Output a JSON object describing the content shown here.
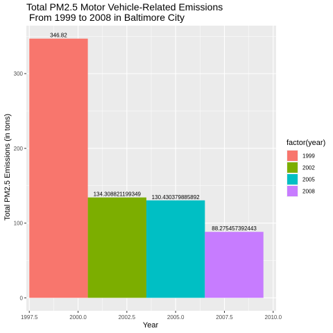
{
  "chart_data": {
    "type": "bar",
    "title_line1": "Total PM2.5 Motor Vehicle-Related Emissions",
    "title_line2": " From 1999 to 2008 in Baltimore City",
    "xlabel": "Year",
    "ylabel": "Total PM2.5 Emissions (in tons)",
    "x": [
      1999,
      2002,
      2005,
      2008
    ],
    "values": [
      346.82,
      134.308821199349,
      130.430379885892,
      88.275457392443
    ],
    "data_labels": [
      "346.82",
      "134.308821199349",
      "130.430379885892",
      "88.275457392443"
    ],
    "bar_width_years": 3,
    "xlim": [
      1997.35,
      2010.15
    ],
    "ylim": [
      -17.34,
      364.16
    ],
    "x_ticks": [
      1997.5,
      2000.0,
      2002.5,
      2005.0,
      2007.5,
      2010.0
    ],
    "x_tick_labels": [
      "1997.5",
      "2000.0",
      "2002.5",
      "2005.0",
      "2007.5",
      "2010.0"
    ],
    "y_ticks": [
      0,
      100,
      200,
      300
    ],
    "y_tick_labels": [
      "0",
      "100",
      "200",
      "300"
    ],
    "grid": true,
    "legend": {
      "title": "factor(year)",
      "placement": "right",
      "entries": [
        "1999",
        "2002",
        "2005",
        "2008"
      ]
    },
    "colors": [
      "#F8766D",
      "#7CAE00",
      "#00BFC4",
      "#C77CFF"
    ],
    "panel_background": "#EBEBEB",
    "grid_color": "#FFFFFF"
  }
}
